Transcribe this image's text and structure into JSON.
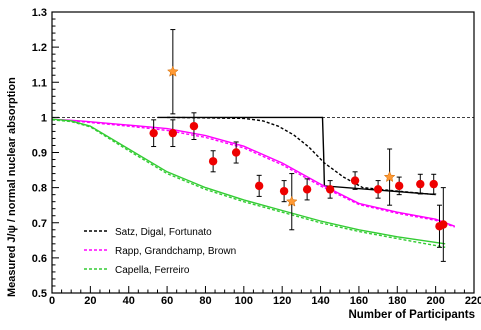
{
  "chart_data": {
    "type": "scatter",
    "xlabel": "Number of Participants",
    "ylabel": "Measured J/ψ / normal nuclear absorption",
    "xlim": [
      0,
      220
    ],
    "ylim": [
      0.5,
      1.3
    ],
    "x_ticks": [
      "0",
      "20",
      "40",
      "60",
      "80",
      "100",
      "120",
      "140",
      "160",
      "180",
      "200",
      "220"
    ],
    "y_ticks": [
      "0.5",
      "0.6",
      "0.7",
      "0.8",
      "0.9",
      "1",
      "1.1",
      "1.2",
      "1.3"
    ],
    "reference_line": 1.0,
    "legend": [
      {
        "name": "Satz, Digal, Fortunato",
        "color": "#000000"
      },
      {
        "name": "Rapp, Grandchamp, Brown",
        "color": "#ff00ff"
      },
      {
        "name": "Capella, Ferreiro",
        "color": "#33cc33"
      }
    ],
    "series": [
      {
        "name": "red-circles",
        "marker": "circle",
        "color": "#ee0000",
        "points": [
          {
            "x": 53,
            "y": 0.955,
            "err": 0.038
          },
          {
            "x": 63,
            "y": 0.955,
            "err": 0.038
          },
          {
            "x": 74,
            "y": 0.975,
            "err": 0.038
          },
          {
            "x": 84,
            "y": 0.875,
            "err": 0.03
          },
          {
            "x": 96,
            "y": 0.9,
            "err": 0.03
          },
          {
            "x": 108,
            "y": 0.805,
            "err": 0.03
          },
          {
            "x": 121,
            "y": 0.79,
            "err": 0.03
          },
          {
            "x": 133,
            "y": 0.795,
            "err": 0.03
          },
          {
            "x": 145,
            "y": 0.795,
            "err": 0.025
          },
          {
            "x": 158,
            "y": 0.82,
            "err": 0.025
          },
          {
            "x": 170,
            "y": 0.795,
            "err": 0.025
          },
          {
            "x": 181,
            "y": 0.805,
            "err": 0.025
          },
          {
            "x": 192,
            "y": 0.81,
            "err": 0.028
          },
          {
            "x": 199,
            "y": 0.81,
            "err": 0.028
          },
          {
            "x": 202,
            "y": 0.69,
            "err": 0.06
          },
          {
            "x": 204,
            "y": 0.695,
            "err": 0.105
          }
        ]
      },
      {
        "name": "orange-stars",
        "marker": "star",
        "color": "#ff9933",
        "points": [
          {
            "x": 63,
            "y": 1.13,
            "err": 0.12
          },
          {
            "x": 125,
            "y": 0.76,
            "err": 0.08
          },
          {
            "x": 176,
            "y": 0.83,
            "err": 0.08
          }
        ]
      }
    ],
    "curves": [
      {
        "id": "satz-solid",
        "color": "#000000",
        "dash": "",
        "x": [
          55,
          100,
          141,
          141.6,
          142,
          200
        ],
        "y": [
          1.0,
          1.0,
          1.0,
          0.9,
          0.805,
          0.78
        ]
      },
      {
        "id": "satz-dashed",
        "color": "#000000",
        "dash": "3,2",
        "x": [
          60,
          100,
          110,
          118,
          126,
          134,
          142,
          152,
          162,
          180,
          200
        ],
        "y": [
          1.0,
          0.997,
          0.99,
          0.975,
          0.95,
          0.915,
          0.87,
          0.83,
          0.8,
          0.79,
          0.78
        ]
      },
      {
        "id": "rapp-solid",
        "color": "#ff00ff",
        "dash": "",
        "x": [
          0,
          15,
          40,
          60,
          80,
          100,
          120,
          140,
          160,
          180,
          200,
          210
        ],
        "y": [
          0.995,
          0.99,
          0.978,
          0.968,
          0.948,
          0.918,
          0.87,
          0.81,
          0.755,
          0.73,
          0.71,
          0.69
        ]
      },
      {
        "id": "rapp-dashed",
        "color": "#ff00ff",
        "dash": "3,2",
        "x": [
          0,
          15,
          40,
          60,
          80,
          100,
          120,
          140,
          160,
          180,
          200,
          210
        ],
        "y": [
          0.993,
          0.988,
          0.975,
          0.963,
          0.943,
          0.913,
          0.865,
          0.805,
          0.752,
          0.727,
          0.707,
          0.688
        ]
      },
      {
        "id": "capella-solid",
        "color": "#33cc33",
        "dash": "",
        "x": [
          0,
          10,
          20,
          40,
          60,
          80,
          100,
          120,
          140,
          160,
          180,
          205
        ],
        "y": [
          0.995,
          0.99,
          0.975,
          0.91,
          0.845,
          0.8,
          0.765,
          0.735,
          0.705,
          0.68,
          0.66,
          0.64
        ]
      },
      {
        "id": "capella-dashed",
        "color": "#33cc33",
        "dash": "3,2",
        "x": [
          0,
          10,
          20,
          40,
          60,
          80,
          100,
          120,
          140,
          160,
          180,
          205
        ],
        "y": [
          0.993,
          0.988,
          0.973,
          0.905,
          0.84,
          0.795,
          0.76,
          0.73,
          0.7,
          0.675,
          0.655,
          0.63
        ]
      }
    ]
  }
}
